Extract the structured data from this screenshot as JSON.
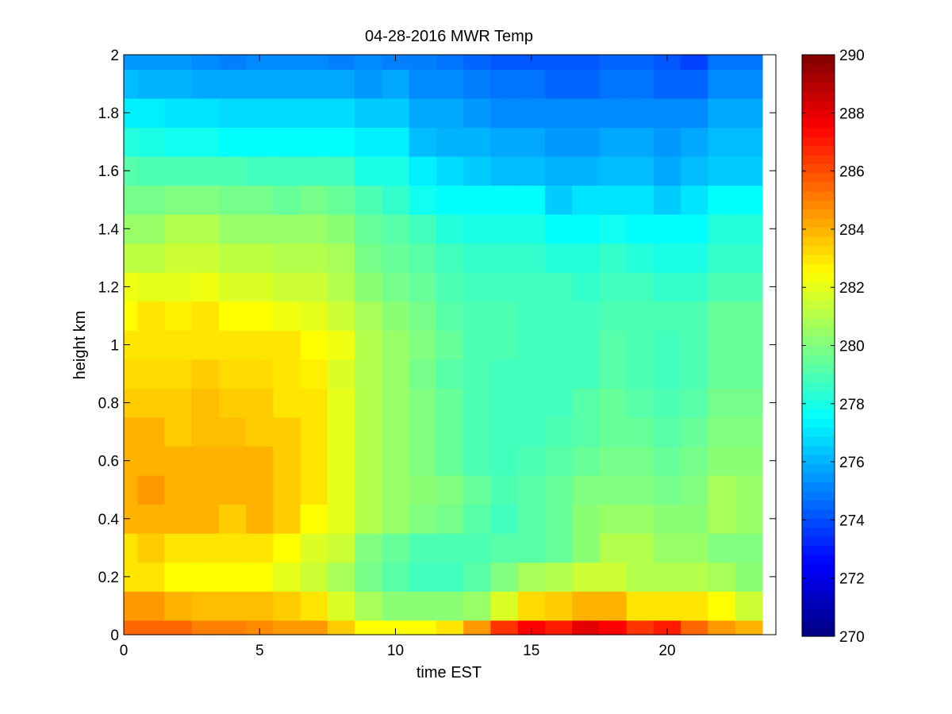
{
  "chart_data": {
    "type": "heatmap",
    "title": "04-28-2016 MWR Temp",
    "xlabel": "time EST",
    "ylabel": "height km",
    "xlim": [
      0,
      24
    ],
    "ylim": [
      0,
      2
    ],
    "xticks": [
      0,
      5,
      10,
      15,
      20
    ],
    "xtick_labels": [
      "0",
      "5",
      "10",
      "15",
      "20"
    ],
    "yticks": [
      0,
      0.2,
      0.4,
      0.6,
      0.8,
      1,
      1.2,
      1.4,
      1.6,
      1.8,
      2
    ],
    "ytick_labels": [
      "0",
      "0.2",
      "0.4",
      "0.6",
      "0.8",
      "1",
      "1.2",
      "1.4",
      "1.6",
      "1.8",
      "2"
    ],
    "colormap": "jet",
    "clim": [
      270,
      290
    ],
    "colorbar_ticks": [
      270,
      272,
      274,
      276,
      278,
      280,
      282,
      284,
      286,
      288,
      290
    ],
    "colorbar_labels": [
      "270",
      "272",
      "274",
      "276",
      "278",
      "280",
      "282",
      "284",
      "286",
      "288",
      "290"
    ],
    "grid": false,
    "x_edges": [
      0,
      0.5,
      1.5,
      2.5,
      3.5,
      4.5,
      5.5,
      6.5,
      7.5,
      8.5,
      9.5,
      10.5,
      11.5,
      12.5,
      13.5,
      14.5,
      15.5,
      16.5,
      17.5,
      18.5,
      19.5,
      20.5,
      21.5,
      22.5,
      23.5
    ],
    "y_edges": [
      0,
      0.05,
      0.15,
      0.25,
      0.35,
      0.45,
      0.55,
      0.65,
      0.75,
      0.85,
      0.95,
      1.05,
      1.15,
      1.25,
      1.35,
      1.45,
      1.55,
      1.65,
      1.75,
      1.85,
      1.95,
      2.0
    ],
    "values_bottom_to_top": [
      [
        285.5,
        285.5,
        285.5,
        285,
        285,
        284.8,
        284.5,
        284.5,
        283.5,
        282.5,
        282.5,
        282.5,
        283,
        284.5,
        286.5,
        287.5,
        287,
        288,
        287.5,
        286.5,
        287,
        285.5,
        284.5,
        284
      ],
      [
        284.5,
        284.5,
        284,
        283.8,
        283.8,
        283.8,
        283.5,
        283,
        281.8,
        280.8,
        280.2,
        280.2,
        280.2,
        280.5,
        281.8,
        283.2,
        283.5,
        284,
        284,
        283,
        283,
        283,
        282.5,
        281.5
      ],
      [
        283,
        283,
        282.5,
        282.5,
        282.5,
        282.5,
        282,
        281.5,
        280.8,
        279.8,
        279.2,
        278.8,
        278.8,
        279.2,
        280,
        280.8,
        281,
        281.5,
        281.5,
        281,
        281,
        281,
        280.8,
        280.2
      ],
      [
        283,
        283.5,
        283,
        283,
        283,
        283,
        282.5,
        281.8,
        281.5,
        280,
        279.5,
        279,
        279,
        279,
        279.2,
        279.2,
        279.5,
        280.2,
        281,
        281,
        280.5,
        280.5,
        280,
        280
      ],
      [
        284,
        284,
        284,
        284,
        283.5,
        284,
        283.5,
        282.5,
        282,
        281,
        280.5,
        280,
        279.8,
        279.2,
        278.8,
        279.2,
        279.5,
        280.2,
        280.5,
        280.5,
        280.2,
        280.2,
        280.8,
        280.5
      ],
      [
        284,
        284.5,
        284,
        284,
        284,
        284,
        283.5,
        283,
        282,
        281,
        280.5,
        280.2,
        280,
        279.5,
        279,
        279.2,
        279.5,
        280,
        280,
        280,
        279.8,
        280,
        280.8,
        280.5
      ],
      [
        284,
        284,
        284,
        284,
        284,
        284,
        283.5,
        283,
        282,
        281,
        280.5,
        280,
        279.5,
        279,
        278.8,
        279,
        279.2,
        279.5,
        279.8,
        279.8,
        279.5,
        279.8,
        280.2,
        280.2
      ],
      [
        284,
        284,
        283.5,
        283.8,
        283.8,
        283.5,
        283.5,
        283,
        282,
        281,
        280.5,
        280,
        279.5,
        279,
        278.8,
        278.8,
        279,
        279.2,
        279.5,
        279.5,
        279.2,
        279.5,
        280,
        280
      ],
      [
        283.5,
        283.5,
        283.5,
        283.8,
        283.5,
        283.5,
        283,
        283,
        282,
        281,
        280.5,
        280,
        279.5,
        279,
        278.8,
        278.8,
        278.8,
        279.2,
        279.5,
        279.2,
        279,
        279.2,
        279.8,
        279.8
      ],
      [
        283.2,
        283.2,
        283.2,
        283.5,
        283.2,
        283.2,
        283,
        282.8,
        281.8,
        281,
        280.5,
        279.8,
        279.2,
        279,
        278.8,
        278.8,
        278.8,
        278.8,
        279.2,
        279,
        278.8,
        279,
        279.5,
        279.5
      ],
      [
        283,
        283,
        283,
        283,
        283,
        283,
        283,
        282.5,
        282.2,
        281,
        280.5,
        280,
        279.5,
        279,
        279,
        278.8,
        278.8,
        278.8,
        279.2,
        279,
        278.8,
        279,
        279.5,
        279.5
      ],
      [
        282.5,
        283,
        282.8,
        283,
        282.5,
        282.5,
        282.2,
        282,
        281.5,
        280.8,
        280.2,
        279.8,
        279.2,
        279,
        279,
        278.8,
        278.8,
        278.8,
        279,
        279,
        279,
        279,
        279.5,
        279.5
      ],
      [
        282.2,
        282,
        282,
        282.2,
        281.8,
        281.8,
        281.5,
        281.5,
        281,
        280.2,
        279.8,
        279.5,
        279,
        278.8,
        278.8,
        278.8,
        278.8,
        278.5,
        278.8,
        278.8,
        278.5,
        278.5,
        279,
        279
      ],
      [
        281.2,
        281.2,
        281.5,
        281.5,
        281.2,
        281.2,
        281,
        281,
        280.8,
        279.8,
        279.5,
        279.2,
        278.8,
        278.5,
        278.5,
        278.5,
        278.2,
        278.2,
        278.5,
        278.2,
        278,
        278,
        278.5,
        278.5
      ],
      [
        280.5,
        280.5,
        281,
        281,
        280.5,
        280.5,
        280.5,
        280.5,
        280.2,
        279.5,
        279.2,
        278.8,
        278.2,
        278,
        278,
        278,
        277.5,
        277.5,
        277.8,
        277.5,
        277.5,
        277.5,
        278.2,
        278.2
      ],
      [
        279.8,
        279.8,
        280,
        280,
        279.8,
        279.8,
        279.5,
        279.8,
        279.5,
        279,
        278.5,
        277.8,
        277.5,
        277.5,
        277.5,
        277.5,
        276.5,
        277,
        277,
        277,
        276.5,
        277,
        277.5,
        277.5
      ],
      [
        279.2,
        279,
        279,
        279,
        279,
        278.8,
        278.8,
        278.8,
        278.8,
        278,
        278,
        277.2,
        276.8,
        276.5,
        276.2,
        276.2,
        276,
        276,
        276.2,
        276.2,
        275.8,
        276.2,
        276.5,
        276.5
      ],
      [
        278.2,
        278,
        277.8,
        277.8,
        277.5,
        277.5,
        277.5,
        277.5,
        277.5,
        277.2,
        277.2,
        276.2,
        276,
        276,
        275.8,
        275.8,
        275.5,
        275.5,
        275.8,
        275.8,
        275.5,
        275.8,
        276.2,
        276.2
      ],
      [
        277.2,
        277.2,
        277,
        277,
        276.8,
        276.8,
        276.8,
        276.8,
        276.8,
        276.5,
        276.5,
        275.8,
        275.8,
        275.5,
        275.2,
        275.2,
        275.2,
        275.2,
        275.2,
        275.2,
        275.2,
        275.2,
        275.8,
        275.8
      ],
      [
        276.2,
        276,
        276,
        275.8,
        275.8,
        275.8,
        275.8,
        275.8,
        275.8,
        275.5,
        275.8,
        275.2,
        275.2,
        275,
        274.8,
        274.8,
        274.5,
        274.5,
        274.8,
        274.8,
        274.5,
        274.5,
        275.2,
        275.2
      ],
      [
        275.5,
        275.5,
        275.5,
        275.2,
        275,
        275.2,
        275.2,
        275.2,
        275,
        275.2,
        275,
        275,
        274.8,
        274.5,
        274.2,
        274.2,
        274.2,
        274.2,
        274.5,
        274.5,
        274.2,
        273.8,
        274.8,
        274.8
      ]
    ]
  }
}
